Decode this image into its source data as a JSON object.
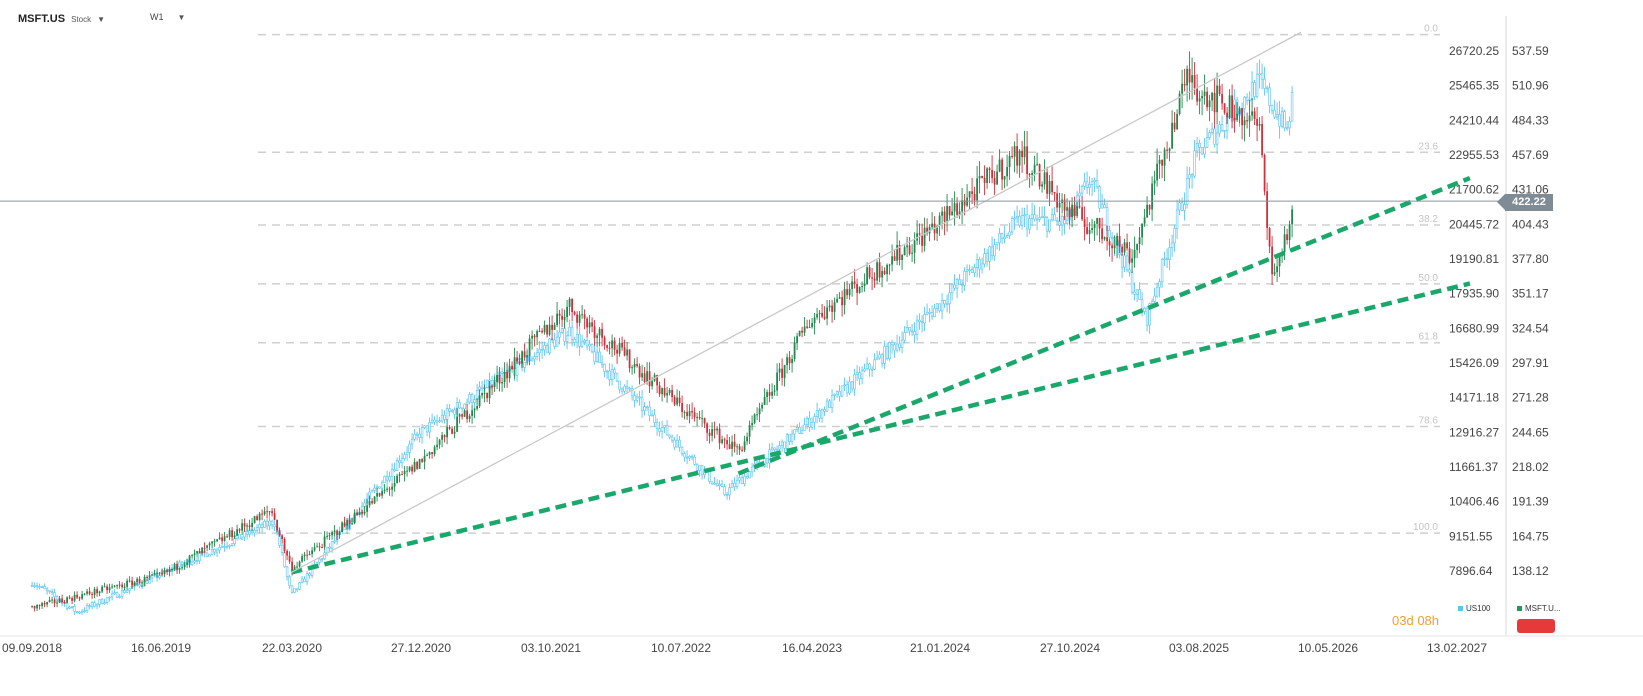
{
  "header": {
    "symbol": "MSFT.US",
    "instrument_type": "Stock",
    "timeframe": "W1"
  },
  "countdown": {
    "days": "03d",
    "hours": "08h"
  },
  "legend": {
    "us100_label": "US100",
    "msft_label": "MSFT.U...",
    "us100_color": "#5bc4f1",
    "msft_color": "#1a9c5a"
  },
  "current_price_label": "422.22",
  "colors": {
    "up": "#1f8a4c",
    "down": "#d12f3a",
    "us100": "#5bc4f1",
    "trend": "#1aa86a",
    "fib": "#c8c8c8"
  },
  "chart_data": {
    "type": "candlestick",
    "x_tick_labels": [
      "09.09.2018",
      "16.06.2019",
      "22.03.2020",
      "27.12.2020",
      "03.10.2021",
      "10.07.2022",
      "16.04.2023",
      "21.01.2024",
      "27.10.2024",
      "03.08.2025",
      "10.05.2026",
      "13.02.2027"
    ],
    "y_left_ticks": [
      "26720.25",
      "25465.35",
      "24210.44",
      "22955.53",
      "21700.62",
      "20445.72",
      "19190.81",
      "17935.90",
      "16680.99",
      "15426.09",
      "14171.18",
      "12916.27",
      "11661.37",
      "10406.46",
      "9151.55",
      "7896.64"
    ],
    "y_right_ticks": [
      "537.59",
      "510.96",
      "484.33",
      "457.69",
      "431.06",
      "404.43",
      "377.80",
      "351.17",
      "324.54",
      "297.91",
      "271.28",
      "244.65",
      "218.02",
      "191.39",
      "164.75",
      "138.12"
    ],
    "right_axis_range": [
      138.12,
      537.59
    ],
    "fibonacci_levels": [
      {
        "label": "0.0",
        "price": 550.2
      },
      {
        "label": "23.6",
        "price": 459.8
      },
      {
        "label": "38.2",
        "price": 403.9
      },
      {
        "label": "50.0",
        "price": 358.7
      },
      {
        "label": "61.8",
        "price": 313.5
      },
      {
        "label": "78.6",
        "price": 249.1
      },
      {
        "label": "100.0",
        "price": 167.2
      }
    ],
    "current_price": 422.22,
    "series": [
      {
        "name": "MSFT.US",
        "kind": "candles",
        "anchors": [
          [
            "09.09.2018",
            110
          ],
          [
            "16.06.2019",
            135
          ],
          [
            "09.02.2020",
            185
          ],
          [
            "22.03.2020",
            140
          ],
          [
            "27.12.2020",
            222
          ],
          [
            "14.11.2021",
            342
          ],
          [
            "10.07.2022",
            265
          ],
          [
            "11.2022",
            230
          ],
          [
            "16.04.2023",
            330
          ],
          [
            "21.01.2024",
            405
          ],
          [
            "07.2024",
            460
          ],
          [
            "27.10.2024",
            415
          ],
          [
            "02.2025",
            390
          ],
          [
            "03.2025",
            380
          ],
          [
            "07.2025",
            520
          ],
          [
            "03.08.2025",
            510
          ],
          [
            "12.2025",
            480
          ],
          [
            "01.2026",
            360
          ],
          [
            "02.2026",
            400
          ],
          [
            "03.2026",
            420
          ]
        ]
      },
      {
        "name": "US100",
        "kind": "candles-hollow",
        "anchors": [
          [
            "09.09.2018",
            7500
          ],
          [
            "12.2018",
            6400
          ],
          [
            "16.06.2019",
            7800
          ],
          [
            "02.2020",
            9700
          ],
          [
            "22.03.2020",
            7000
          ],
          [
            "27.12.2020",
            12900
          ],
          [
            "11.2021",
            16600
          ],
          [
            "10.2022",
            10700
          ],
          [
            "16.04.2023",
            13300
          ],
          [
            "21.01.2024",
            17500
          ],
          [
            "07.2024",
            20600
          ],
          [
            "27.10.2024",
            20500
          ],
          [
            "12.2024",
            22100
          ],
          [
            "04.2025",
            17000
          ],
          [
            "03.08.2025",
            23000
          ],
          [
            "12.2025",
            25600
          ],
          [
            "02.2026",
            23800
          ],
          [
            "03.2026",
            27000
          ]
        ]
      }
    ],
    "trendlines": [
      {
        "style": "dashed",
        "from": [
          "22.03.2020",
          137
        ],
        "to": [
          "03.2027",
          359
        ]
      },
      {
        "style": "dashed",
        "from": [
          "11.2022",
          213
        ],
        "to": [
          "03.2027",
          440
        ]
      },
      {
        "style": "solid",
        "from": [
          "22.03.2020",
          137
        ],
        "to": [
          "03.2026",
          552
        ]
      }
    ]
  }
}
